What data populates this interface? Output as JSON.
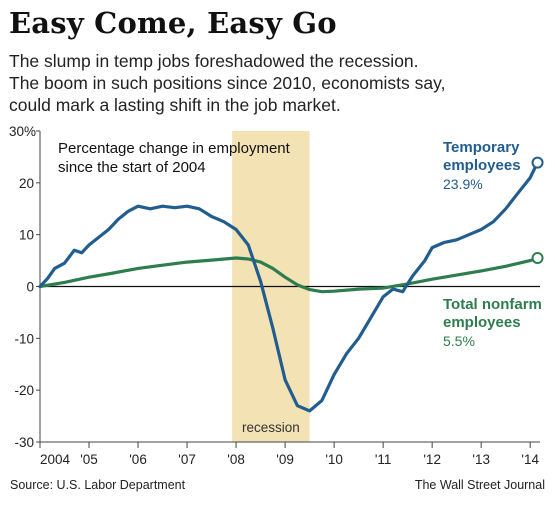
{
  "title": "Easy Come, Easy Go",
  "subtitle": [
    "The slump in temp jobs foreshadowed the recession.",
    "The boom in such positions since 2010, economists say,",
    "could mark a lasting shift in the job market."
  ],
  "source": "Source: U.S. Labor Department",
  "credit": "The Wall Street Journal",
  "chart_data": {
    "type": "line",
    "annotation_lines": [
      "Percentage change in employment",
      "since the start of 2004"
    ],
    "y_ticks": [
      "30%",
      "20",
      "10",
      "0",
      "-10",
      "-20",
      "-30"
    ],
    "y_tick_values": [
      30,
      20,
      10,
      0,
      -10,
      -20,
      -30
    ],
    "ylim": [
      -30,
      30
    ],
    "xlim": [
      2004,
      2014.2
    ],
    "x_ticks": [
      "2004",
      "'05",
      "'06",
      "'07",
      "'08",
      "'09",
      "'10",
      "'11",
      "'12",
      "'13",
      "'14"
    ],
    "x_tick_values": [
      2004,
      2005,
      2006,
      2007,
      2008,
      2009,
      2010,
      2011,
      2012,
      2013,
      2014
    ],
    "recession": {
      "label": "recession",
      "start": 2007.92,
      "end": 2009.5,
      "color": "#f3e2b3"
    },
    "grid": false,
    "series": [
      {
        "name": "Temporary employees",
        "label_lines": [
          "Temporary",
          "employees"
        ],
        "end_value_label": "23.9%",
        "color": "#215d8e",
        "points": [
          [
            2004.0,
            0
          ],
          [
            2004.15,
            1.5
          ],
          [
            2004.3,
            3.5
          ],
          [
            2004.5,
            4.5
          ],
          [
            2004.7,
            7
          ],
          [
            2004.85,
            6.5
          ],
          [
            2005.0,
            8
          ],
          [
            2005.2,
            9.5
          ],
          [
            2005.4,
            11
          ],
          [
            2005.6,
            13
          ],
          [
            2005.8,
            14.5
          ],
          [
            2006.0,
            15.5
          ],
          [
            2006.25,
            15
          ],
          [
            2006.5,
            15.5
          ],
          [
            2006.75,
            15.2
          ],
          [
            2007.0,
            15.5
          ],
          [
            2007.25,
            15
          ],
          [
            2007.5,
            13.5
          ],
          [
            2007.75,
            12.5
          ],
          [
            2008.0,
            11
          ],
          [
            2008.25,
            8
          ],
          [
            2008.5,
            1
          ],
          [
            2008.75,
            -8
          ],
          [
            2009.0,
            -18
          ],
          [
            2009.25,
            -23
          ],
          [
            2009.5,
            -24
          ],
          [
            2009.75,
            -22
          ],
          [
            2010.0,
            -17
          ],
          [
            2010.25,
            -13
          ],
          [
            2010.5,
            -10
          ],
          [
            2010.75,
            -6
          ],
          [
            2011.0,
            -2
          ],
          [
            2011.2,
            -0.5
          ],
          [
            2011.4,
            -1
          ],
          [
            2011.6,
            2
          ],
          [
            2011.85,
            5
          ],
          [
            2012.0,
            7.5
          ],
          [
            2012.25,
            8.5
          ],
          [
            2012.5,
            9
          ],
          [
            2012.75,
            10
          ],
          [
            2013.0,
            11
          ],
          [
            2013.25,
            12.5
          ],
          [
            2013.5,
            15
          ],
          [
            2013.75,
            18
          ],
          [
            2014.0,
            21
          ],
          [
            2014.15,
            23.9
          ]
        ]
      },
      {
        "name": "Total nonfarm employees",
        "label_lines": [
          "Total nonfarm",
          "employees"
        ],
        "end_value_label": "5.5%",
        "color": "#2e7d4f",
        "points": [
          [
            2004.0,
            0
          ],
          [
            2004.5,
            0.8
          ],
          [
            2005.0,
            1.8
          ],
          [
            2005.5,
            2.6
          ],
          [
            2006.0,
            3.5
          ],
          [
            2006.5,
            4.1
          ],
          [
            2007.0,
            4.7
          ],
          [
            2007.5,
            5.1
          ],
          [
            2008.0,
            5.5
          ],
          [
            2008.25,
            5.3
          ],
          [
            2008.5,
            4.7
          ],
          [
            2008.75,
            3.5
          ],
          [
            2009.0,
            1.8
          ],
          [
            2009.25,
            0.3
          ],
          [
            2009.5,
            -0.6
          ],
          [
            2009.75,
            -1
          ],
          [
            2010.0,
            -0.9
          ],
          [
            2010.5,
            -0.5
          ],
          [
            2011.0,
            -0.3
          ],
          [
            2011.5,
            0.5
          ],
          [
            2012.0,
            1.4
          ],
          [
            2012.5,
            2.2
          ],
          [
            2013.0,
            3
          ],
          [
            2013.5,
            3.9
          ],
          [
            2014.0,
            5
          ],
          [
            2014.15,
            5.5
          ]
        ]
      }
    ]
  }
}
